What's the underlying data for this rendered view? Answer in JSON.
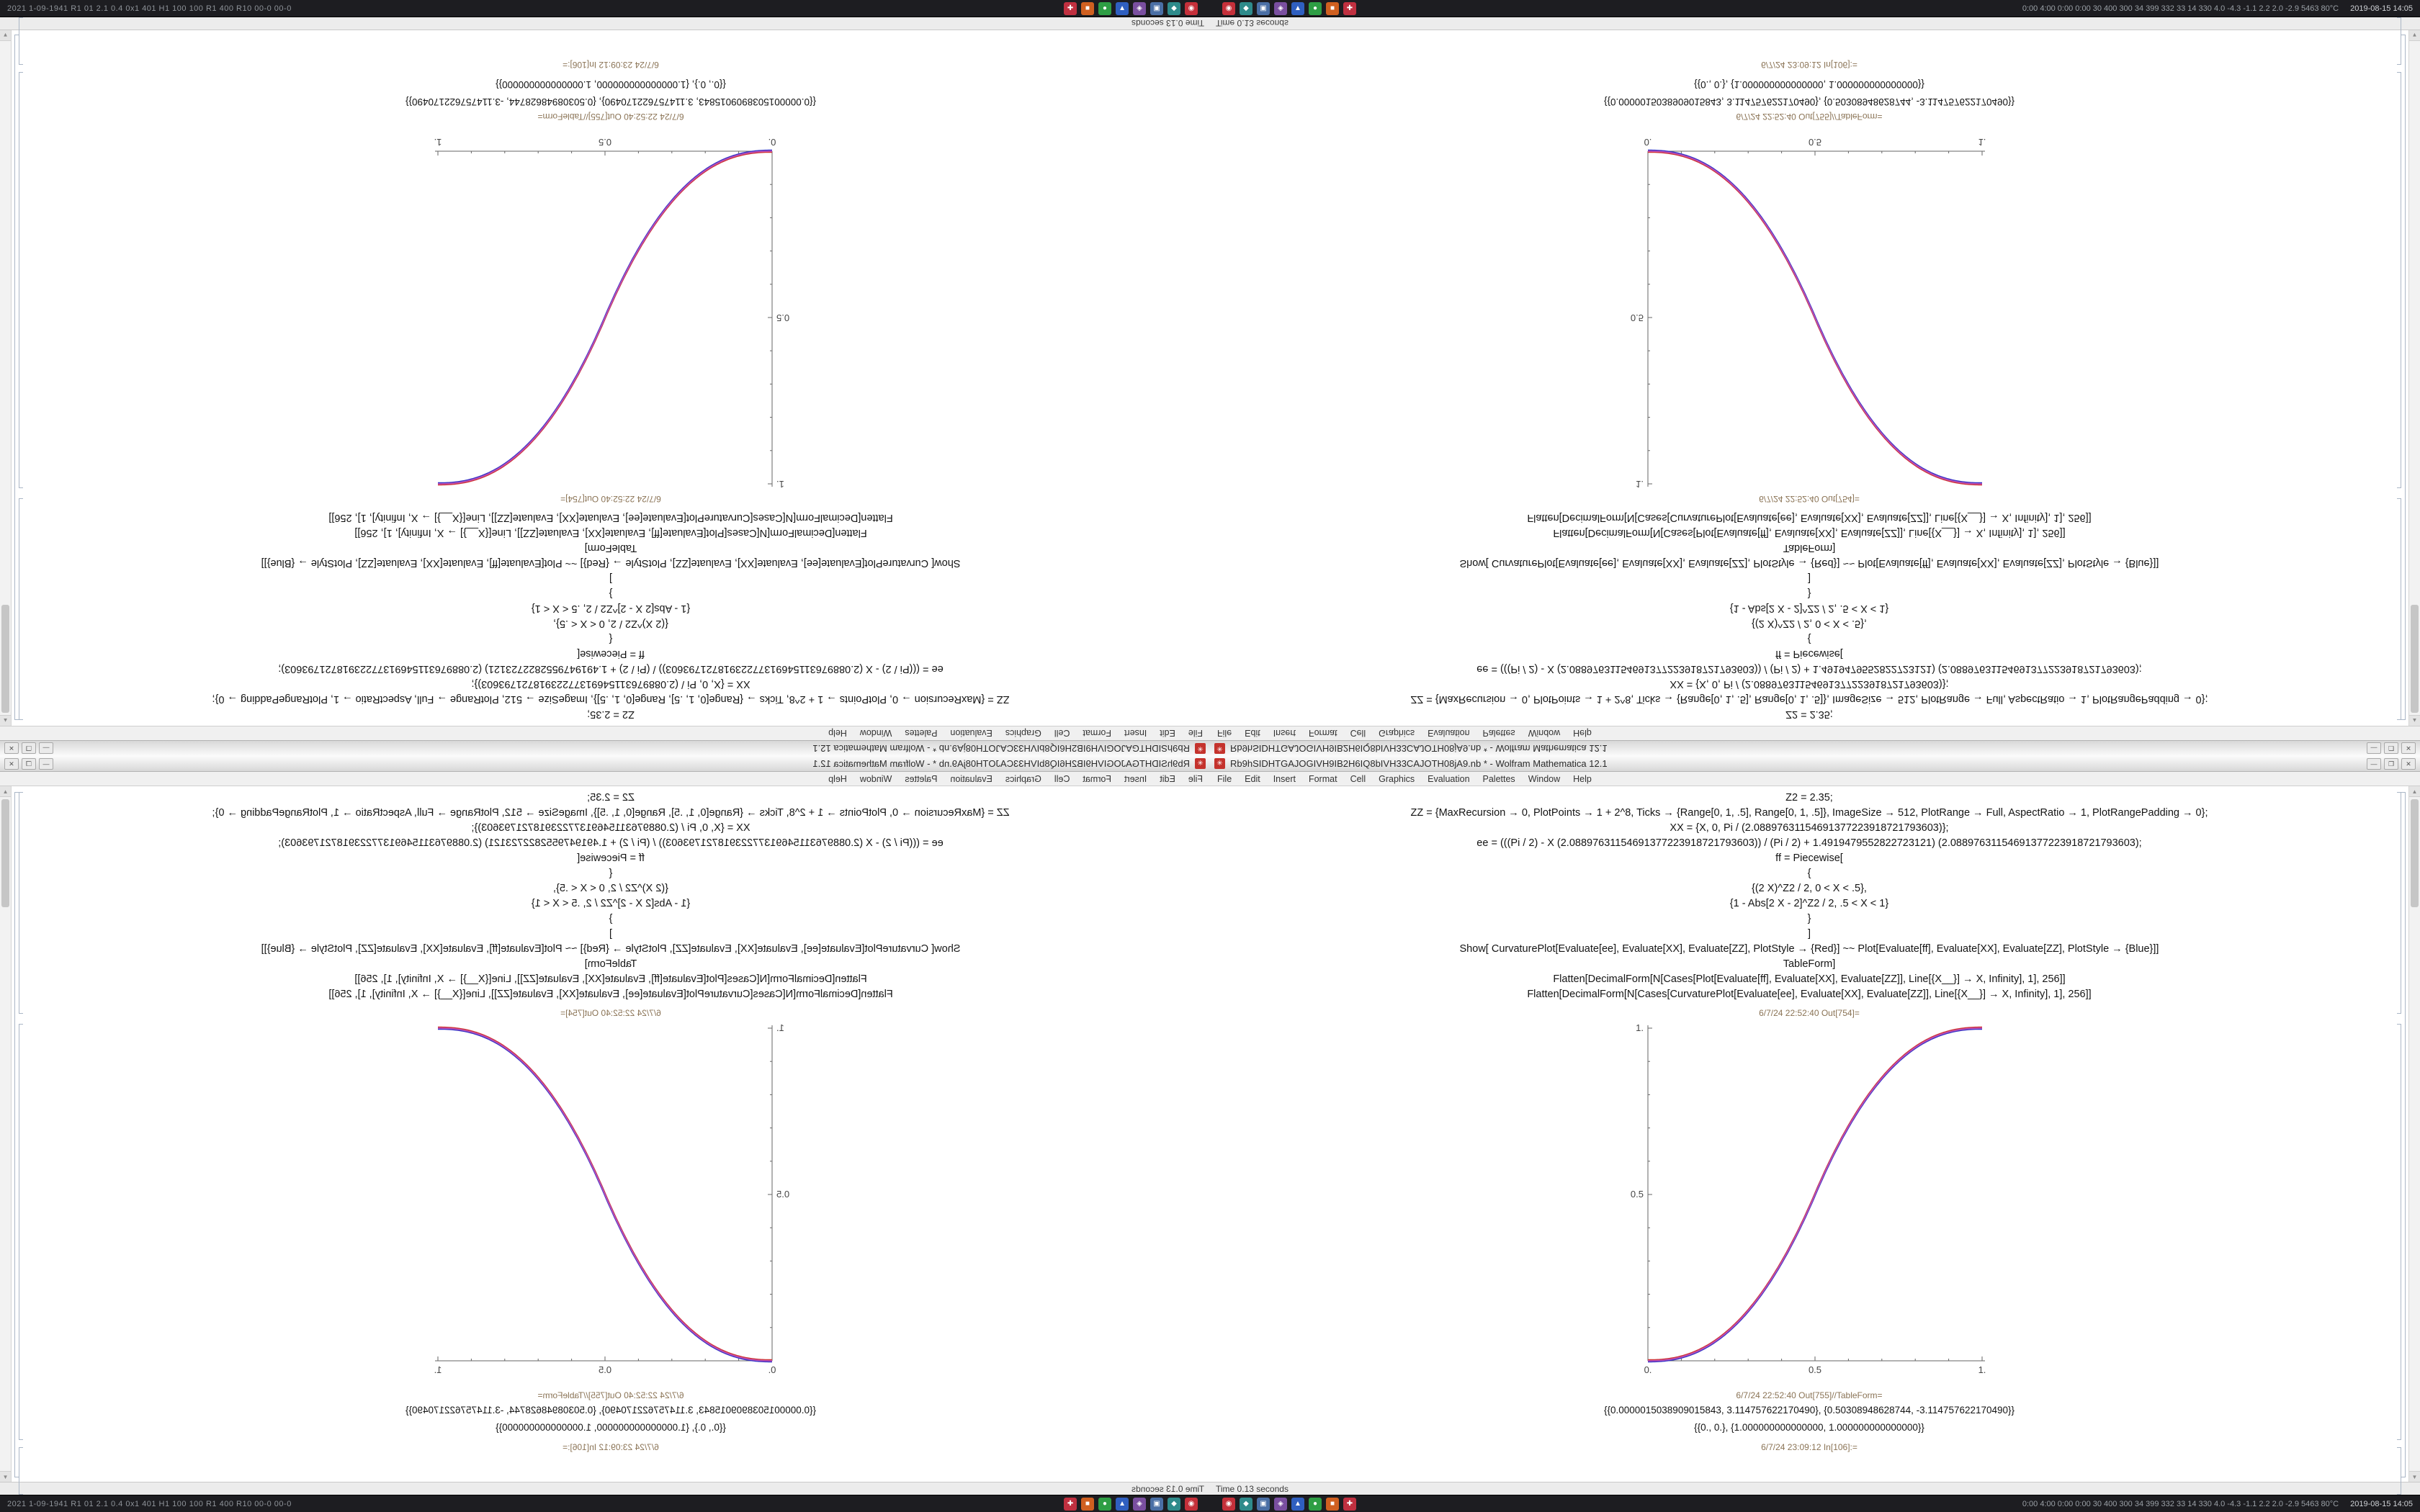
{
  "taskbar": {
    "left_text": "2021 1-09-1941 R1 01 2.1 0.4 0x1 401 H1 100 100 R1 400 R10 00-0 00-0",
    "right_text": "0:00 4:00 0:00 0:00 30 400 300 34 399 332 33 14 330 4.0 -4.3 -1.1 2.2 2.0 -2.9 5463 80°C",
    "clock": "2019-08-15 14:05",
    "icons": [
      {
        "name": "app-crimson",
        "color": "#c5303a",
        "glyph": "◉"
      },
      {
        "name": "app-teal",
        "color": "#2e8b8b",
        "glyph": "◆"
      },
      {
        "name": "app-steel",
        "color": "#4a6fa5",
        "glyph": "▣"
      },
      {
        "name": "app-violet",
        "color": "#7a4fa0",
        "glyph": "◈"
      },
      {
        "name": "app-blue",
        "color": "#2f5fc0",
        "glyph": "▲"
      },
      {
        "name": "app-green",
        "color": "#2e9e44",
        "glyph": "●"
      },
      {
        "name": "app-orange",
        "color": "#d06020",
        "glyph": "■"
      },
      {
        "name": "app-red",
        "color": "#c03040",
        "glyph": "✚"
      }
    ]
  },
  "window": {
    "app_icon_glyph": "✳",
    "title": "Rb9hSIDHTGAJOGIVH9IB2H6IQ8bIVH33CAJOTH08jA9.nb * - Wolfram Mathematica 12.1",
    "buttons": {
      "minimize": "—",
      "maximize": "❐",
      "close": "✕"
    },
    "menu": [
      "File",
      "Edit",
      "Insert",
      "Format",
      "Cell",
      "Graphics",
      "Evaluation",
      "Palettes",
      "Window",
      "Help"
    ],
    "status": "Time 0.13 seconds",
    "scroll_up": "▲",
    "scroll_down": "▼"
  },
  "notebook": {
    "code_lines": [
      "Z2 = 2.35;",
      "ZZ = {MaxRecursion → 0, PlotPoints → 1 + 2^8, Ticks → {Range[0, 1, .5], Range[0, 1, .5]}, ImageSize → 512, PlotRange → Full, AspectRatio → 1, PlotRangePadding → 0};",
      "XX = {X, 0, Pi / (2.08897631154691377223918721793603)};",
      "ee = (((Pi / 2) - X (2.08897631154691377223918721793603)) / (Pi / 2) + 1.4919479552822723121) (2.08897631154691377223918721793603);",
      "ff = Piecewise[",
      "{",
      "{(2 X)^Z2 / 2, 0 < X < .5},",
      "{1 - Abs[2 X - 2]^Z2 / 2, .5 < X < 1}",
      "}",
      "]",
      "Show[ CurvaturePlot[Evaluate[ee], Evaluate[XX], Evaluate[ZZ], PlotStyle → {Red}] ~~ Plot[Evaluate[ff], Evaluate[XX], Evaluate[ZZ], PlotStyle → {Blue}]]",
      "TableForm]",
      "Flatten[DecimalForm[N[Cases[Plot[Evaluate[ff], Evaluate[XX], Evaluate[ZZ]], Line[{X__}] → X, Infinity], 1], 256]]",
      "Flatten[DecimalForm[N[Cases[CurvaturePlot[Evaluate[ee], Evaluate[XX], Evaluate[ZZ]], Line[{X__}] → X, Infinity], 1], 256]]"
    ],
    "out_label_1": "6/7/24 22:52:40 Out[754]=",
    "out_label_2": "6/7/24 22:52:40 Out[755]//TableForm=",
    "result_rows": [
      "{{0.0000015038909015843, 3.114757622170490}, {0.50308948628744, -3.114757622170490}}",
      "{{0., 0.}, {1.000000000000000, 1.000000000000000}}"
    ],
    "next_in_label": "6/7/24 23:09:12 In[106]:="
  },
  "chart_data": {
    "type": "line",
    "title": "",
    "xlabel": "",
    "ylabel": "",
    "xlim": [
      0,
      1
    ],
    "ylim": [
      0,
      1
    ],
    "grid": false,
    "legend": "none",
    "tick_values": [
      0,
      0.5,
      1
    ],
    "x_ticks": [
      "0.",
      "0.5",
      "1."
    ],
    "y_ticks": [
      "0.5",
      "1."
    ],
    "exponent": 2.35,
    "series": [
      {
        "name": "CurvaturePlot ee",
        "color": "#d03434"
      },
      {
        "name": "Plot ff",
        "color": "#3434c8"
      }
    ],
    "blend_color": "#bb4fb4",
    "description": "Smoothstep sigmoid from (0,0) to (1,1): y=(2x)^2.35/2 for 0<x<0.5, y=1-(2-2x)^2.35/2 for 0.5<x<1; red and blue curves overlap appearing purple"
  }
}
